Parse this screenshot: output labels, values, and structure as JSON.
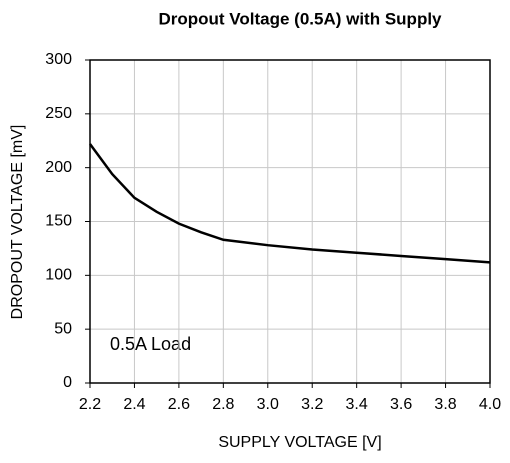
{
  "chart_data": {
    "type": "line",
    "title": "Dropout Voltage (0.5A) with Supply",
    "xlabel": "SUPPLY VOLTAGE [V]",
    "ylabel": "DROPOUT VOLTAGE [mV]",
    "annotation": "0.5A Load",
    "x": [
      2.2,
      2.3,
      2.4,
      2.5,
      2.6,
      2.7,
      2.8,
      3.0,
      3.2,
      3.4,
      3.6,
      3.8,
      4.0
    ],
    "series": [
      {
        "name": "0.5A Load",
        "color": "#000000",
        "values": [
          222,
          194,
          172,
          159,
          148,
          140,
          133,
          128,
          124,
          121,
          118,
          115,
          112
        ]
      }
    ],
    "xlim": [
      2.2,
      4.0
    ],
    "xticks": [
      2.2,
      2.4,
      2.6,
      2.8,
      {
        "value": 3,
        "label": "3.0"
      },
      3.2,
      3.4,
      3.6,
      3.8,
      {
        "value": 4,
        "label": "4.0"
      }
    ],
    "ylim": [
      0,
      300
    ],
    "yticks": [
      0,
      50,
      100,
      150,
      200,
      250,
      300
    ],
    "grid": true
  }
}
